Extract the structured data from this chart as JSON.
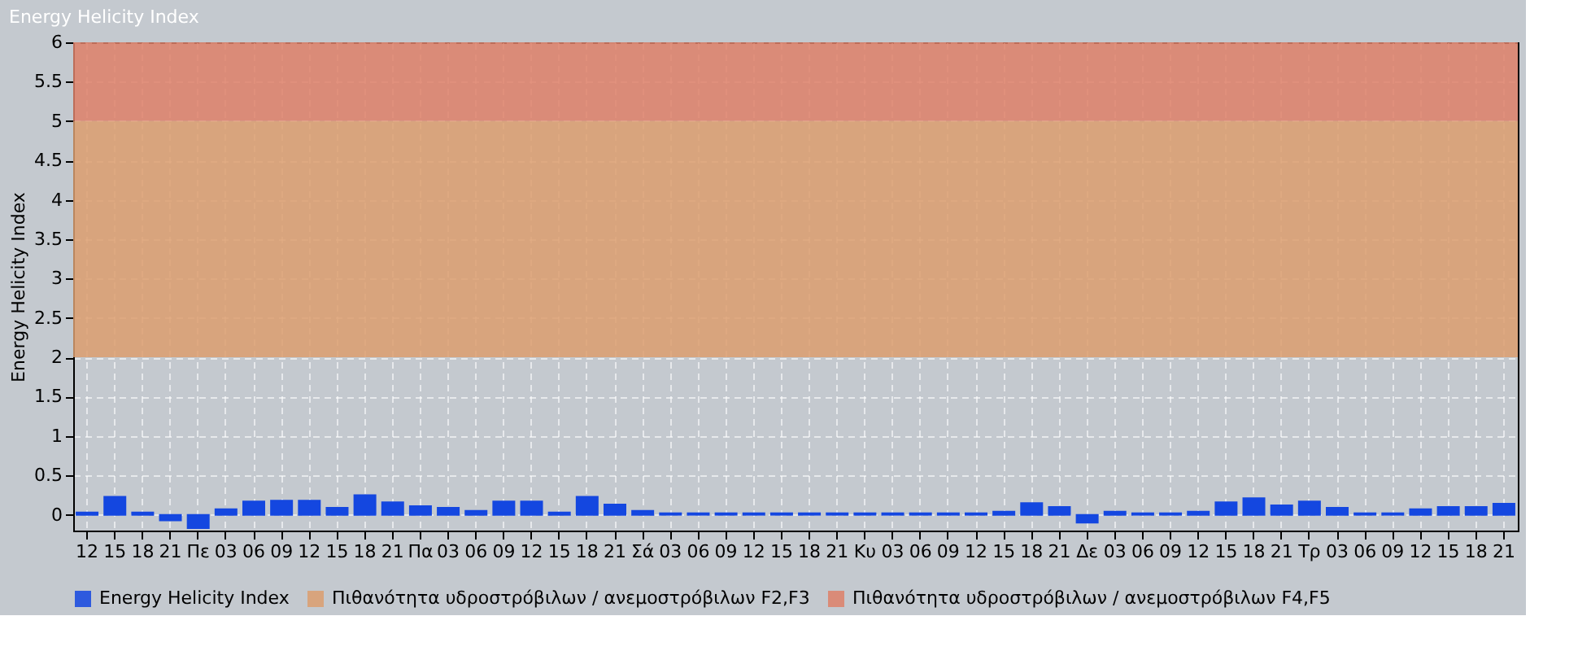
{
  "chart_data": {
    "type": "bar",
    "title": "Energy Helicity Index",
    "ylabel": "Energy Helicity Index",
    "categories": [
      "12",
      "15",
      "18",
      "21",
      "Πε",
      "03",
      "06",
      "09",
      "12",
      "15",
      "18",
      "21",
      "Πα",
      "03",
      "06",
      "09",
      "12",
      "15",
      "18",
      "21",
      "Σά",
      "03",
      "06",
      "09",
      "12",
      "15",
      "18",
      "21",
      "Κυ",
      "03",
      "06",
      "09",
      "12",
      "15",
      "18",
      "21",
      "Δε",
      "03",
      "06",
      "09",
      "12",
      "15",
      "18",
      "21",
      "Τρ",
      "03",
      "06",
      "09",
      "12",
      "15",
      "18",
      "21"
    ],
    "series": [
      {
        "name": "Energy Helicity Index",
        "color": "#1447e0",
        "values": [
          0.03,
          0.23,
          0.03,
          -0.07,
          -0.17,
          0.07,
          0.17,
          0.18,
          0.18,
          0.09,
          0.25,
          0.16,
          0.11,
          0.09,
          0.05,
          0.17,
          0.17,
          0.03,
          0.23,
          0.13,
          0.05,
          0.02,
          0.02,
          0.02,
          0.02,
          0.02,
          0.02,
          0.02,
          0.02,
          0.02,
          0.02,
          0.02,
          0.02,
          0.04,
          0.15,
          0.1,
          -0.1,
          0.04,
          0.02,
          0.02,
          0.04,
          0.16,
          0.21,
          0.12,
          0.17,
          0.09,
          0.02,
          0.02,
          0.07,
          0.1,
          0.1,
          0.14
        ]
      }
    ],
    "ylim": [
      -0.2,
      6
    ],
    "yticks": [
      0,
      0.5,
      1,
      1.5,
      2,
      2.5,
      3,
      3.5,
      4,
      4.5,
      5,
      5.5,
      6
    ],
    "bands": [
      {
        "axis": "y",
        "from": 2,
        "to": 5,
        "label": "Πιθανότητα υδροστρόβιλων / ανεμοστρόβιλων F2,F3",
        "color": "#dc9e6e"
      },
      {
        "axis": "y",
        "from": 5,
        "to": 6,
        "label": "Πιθανότητα υδροστρόβιλων / ανεμοστρόβιλων F4,F5",
        "color": "#de8068"
      }
    ],
    "grid": true,
    "legend": "bottom"
  }
}
